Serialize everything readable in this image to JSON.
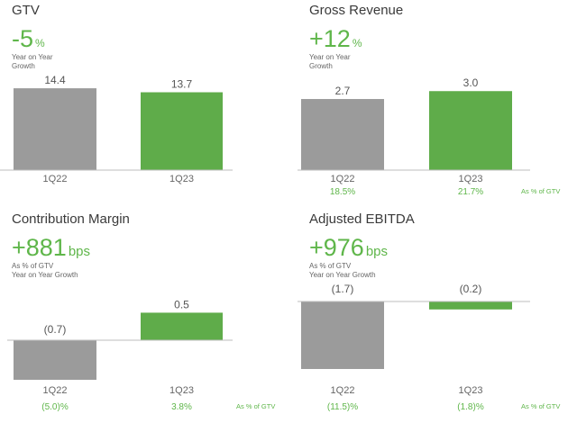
{
  "colors": {
    "prior": "#9b9b9b",
    "current": "#5fac4a",
    "accent": "#5fb64a",
    "axis": "#bdbdbd"
  },
  "chart_data": [
    {
      "type": "bar",
      "title": "GTV",
      "headline": {
        "value": "-5",
        "unit": "%"
      },
      "caption": [
        "Year on Year",
        "Growth"
      ],
      "categories": [
        "1Q22",
        "1Q23"
      ],
      "values": [
        14.4,
        13.7
      ],
      "value_labels": [
        "14.4",
        "13.7"
      ],
      "ylim": [
        0,
        16
      ]
    },
    {
      "type": "bar",
      "title": "Gross Revenue",
      "headline": {
        "value": "+12",
        "unit": "%"
      },
      "caption": [
        "Year on Year",
        "Growth"
      ],
      "categories": [
        "1Q22",
        "1Q23"
      ],
      "values": [
        2.7,
        3.0
      ],
      "value_labels": [
        "2.7",
        "3.0"
      ],
      "pct_of_gtv": [
        "18.5%",
        "21.7%"
      ],
      "pct_note": "As % of GTV",
      "ylim": [
        0,
        3.35
      ]
    },
    {
      "type": "bar",
      "title": "Contribution Margin",
      "headline": {
        "value": "+881",
        "unit": "bps"
      },
      "caption": [
        "As % of GTV",
        "Year on Year Growth"
      ],
      "categories": [
        "1Q22",
        "1Q23"
      ],
      "values": [
        -0.7,
        0.5
      ],
      "value_labels": [
        "(0.7)",
        "0.5"
      ],
      "pct_of_gtv": [
        "(5.0)%",
        "3.8%"
      ],
      "pct_note": "As % of GTV",
      "ylim": [
        -0.7,
        0.7
      ]
    },
    {
      "type": "bar",
      "title": "Adjusted EBITDA",
      "headline": {
        "value": "+976",
        "unit": "bps"
      },
      "caption": [
        "As % of GTV",
        "Year on Year Growth"
      ],
      "categories": [
        "1Q22",
        "1Q23"
      ],
      "values": [
        -1.7,
        -0.2
      ],
      "value_labels": [
        "(1.7)",
        "(0.2)"
      ],
      "pct_of_gtv": [
        "(11.5)%",
        "(1.8)%"
      ],
      "pct_note": "As % of GTV",
      "ylim": [
        -1.7,
        0
      ]
    }
  ]
}
